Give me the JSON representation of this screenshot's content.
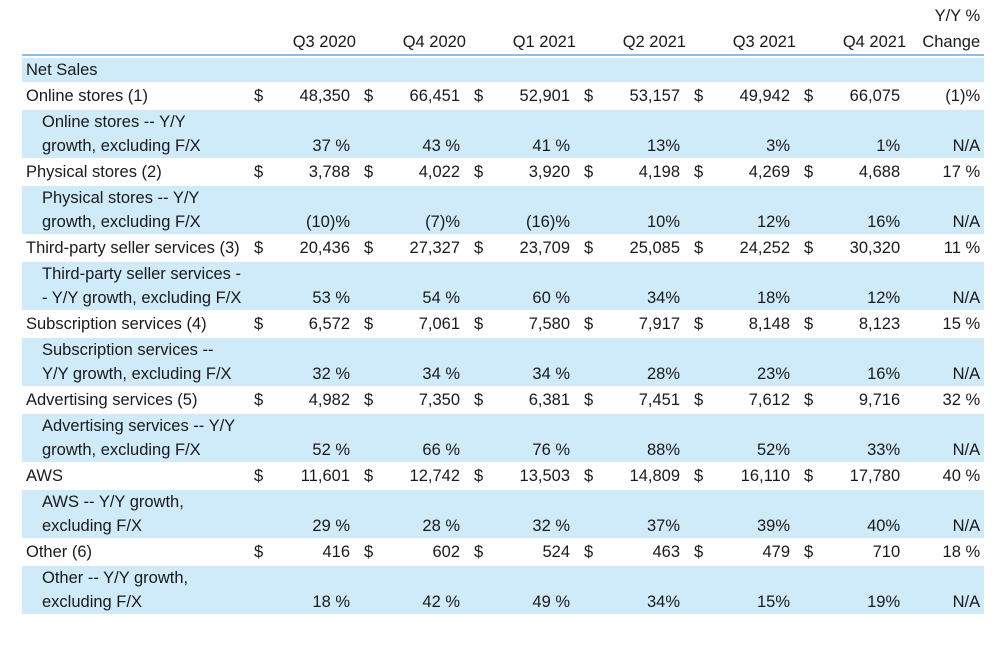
{
  "header": {
    "periods": [
      "Q3 2020",
      "Q4 2020",
      "Q1 2021",
      "Q2 2021",
      "Q3 2021",
      "Q4 2021"
    ],
    "change_line1": "Y/Y %",
    "change_line2": "Change"
  },
  "section_title": "Net Sales",
  "currency_symbol": "$",
  "rows": [
    {
      "label": "Online stores (1)",
      "type": "dollar",
      "values": [
        "48,350",
        "66,451",
        "52,901",
        "53,157",
        "49,942",
        "66,075"
      ],
      "change": "(1)%"
    },
    {
      "label": "Online stores -- Y/Y growth, excluding F/X",
      "type": "pct",
      "values": [
        "37 %",
        "43 %",
        "41 %",
        "13%",
        "3%",
        "1%"
      ],
      "change": "N/A"
    },
    {
      "label": "Physical stores (2)",
      "type": "dollar",
      "values": [
        "3,788",
        "4,022",
        "3,920",
        "4,198",
        "4,269",
        "4,688"
      ],
      "change": "17 %"
    },
    {
      "label": "Physical stores -- Y/Y growth, excluding F/X",
      "type": "pct",
      "values": [
        "(10)%",
        "(7)%",
        "(16)%",
        "10%",
        "12%",
        "16%"
      ],
      "change": "N/A"
    },
    {
      "label": "Third-party seller services (3)",
      "type": "dollar",
      "values": [
        "20,436",
        "27,327",
        "23,709",
        "25,085",
        "24,252",
        "30,320"
      ],
      "change": "11 %"
    },
    {
      "label": "Third-party seller services -- Y/Y growth, excluding F/X",
      "type": "pct",
      "values": [
        "53 %",
        "54 %",
        "60 %",
        "34%",
        "18%",
        "12%"
      ],
      "change": "N/A"
    },
    {
      "label": "Subscription services (4)",
      "type": "dollar",
      "values": [
        "6,572",
        "7,061",
        "7,580",
        "7,917",
        "8,148",
        "8,123"
      ],
      "change": "15 %"
    },
    {
      "label": "Subscription services -- Y/Y growth, excluding F/X",
      "type": "pct",
      "values": [
        "32 %",
        "34 %",
        "34 %",
        "28%",
        "23%",
        "16%"
      ],
      "change": "N/A"
    },
    {
      "label": "Advertising services (5)",
      "type": "dollar",
      "values": [
        "4,982",
        "7,350",
        "6,381",
        "7,451",
        "7,612",
        "9,716"
      ],
      "change": "32 %"
    },
    {
      "label": "Advertising services -- Y/Y growth, excluding F/X",
      "type": "pct",
      "values": [
        "52 %",
        "66 %",
        "76 %",
        "88%",
        "52%",
        "33%"
      ],
      "change": "N/A"
    },
    {
      "label": "AWS",
      "type": "dollar",
      "values": [
        "11,601",
        "12,742",
        "13,503",
        "14,809",
        "16,110",
        "17,780"
      ],
      "change": "40 %"
    },
    {
      "label": "AWS -- Y/Y growth, excluding F/X",
      "type": "pct",
      "values": [
        "29 %",
        "28 %",
        "32 %",
        "37%",
        "39%",
        "40%"
      ],
      "change": "N/A"
    },
    {
      "label": "Other (6)",
      "type": "dollar",
      "values": [
        "416",
        "602",
        "524",
        "463",
        "479",
        "710"
      ],
      "change": "18 %"
    },
    {
      "label": "Other -- Y/Y growth, excluding F/X",
      "type": "pct",
      "values": [
        "18 %",
        "42 %",
        "49 %",
        "34%",
        "15%",
        "19%"
      ],
      "change": "N/A"
    }
  ]
}
